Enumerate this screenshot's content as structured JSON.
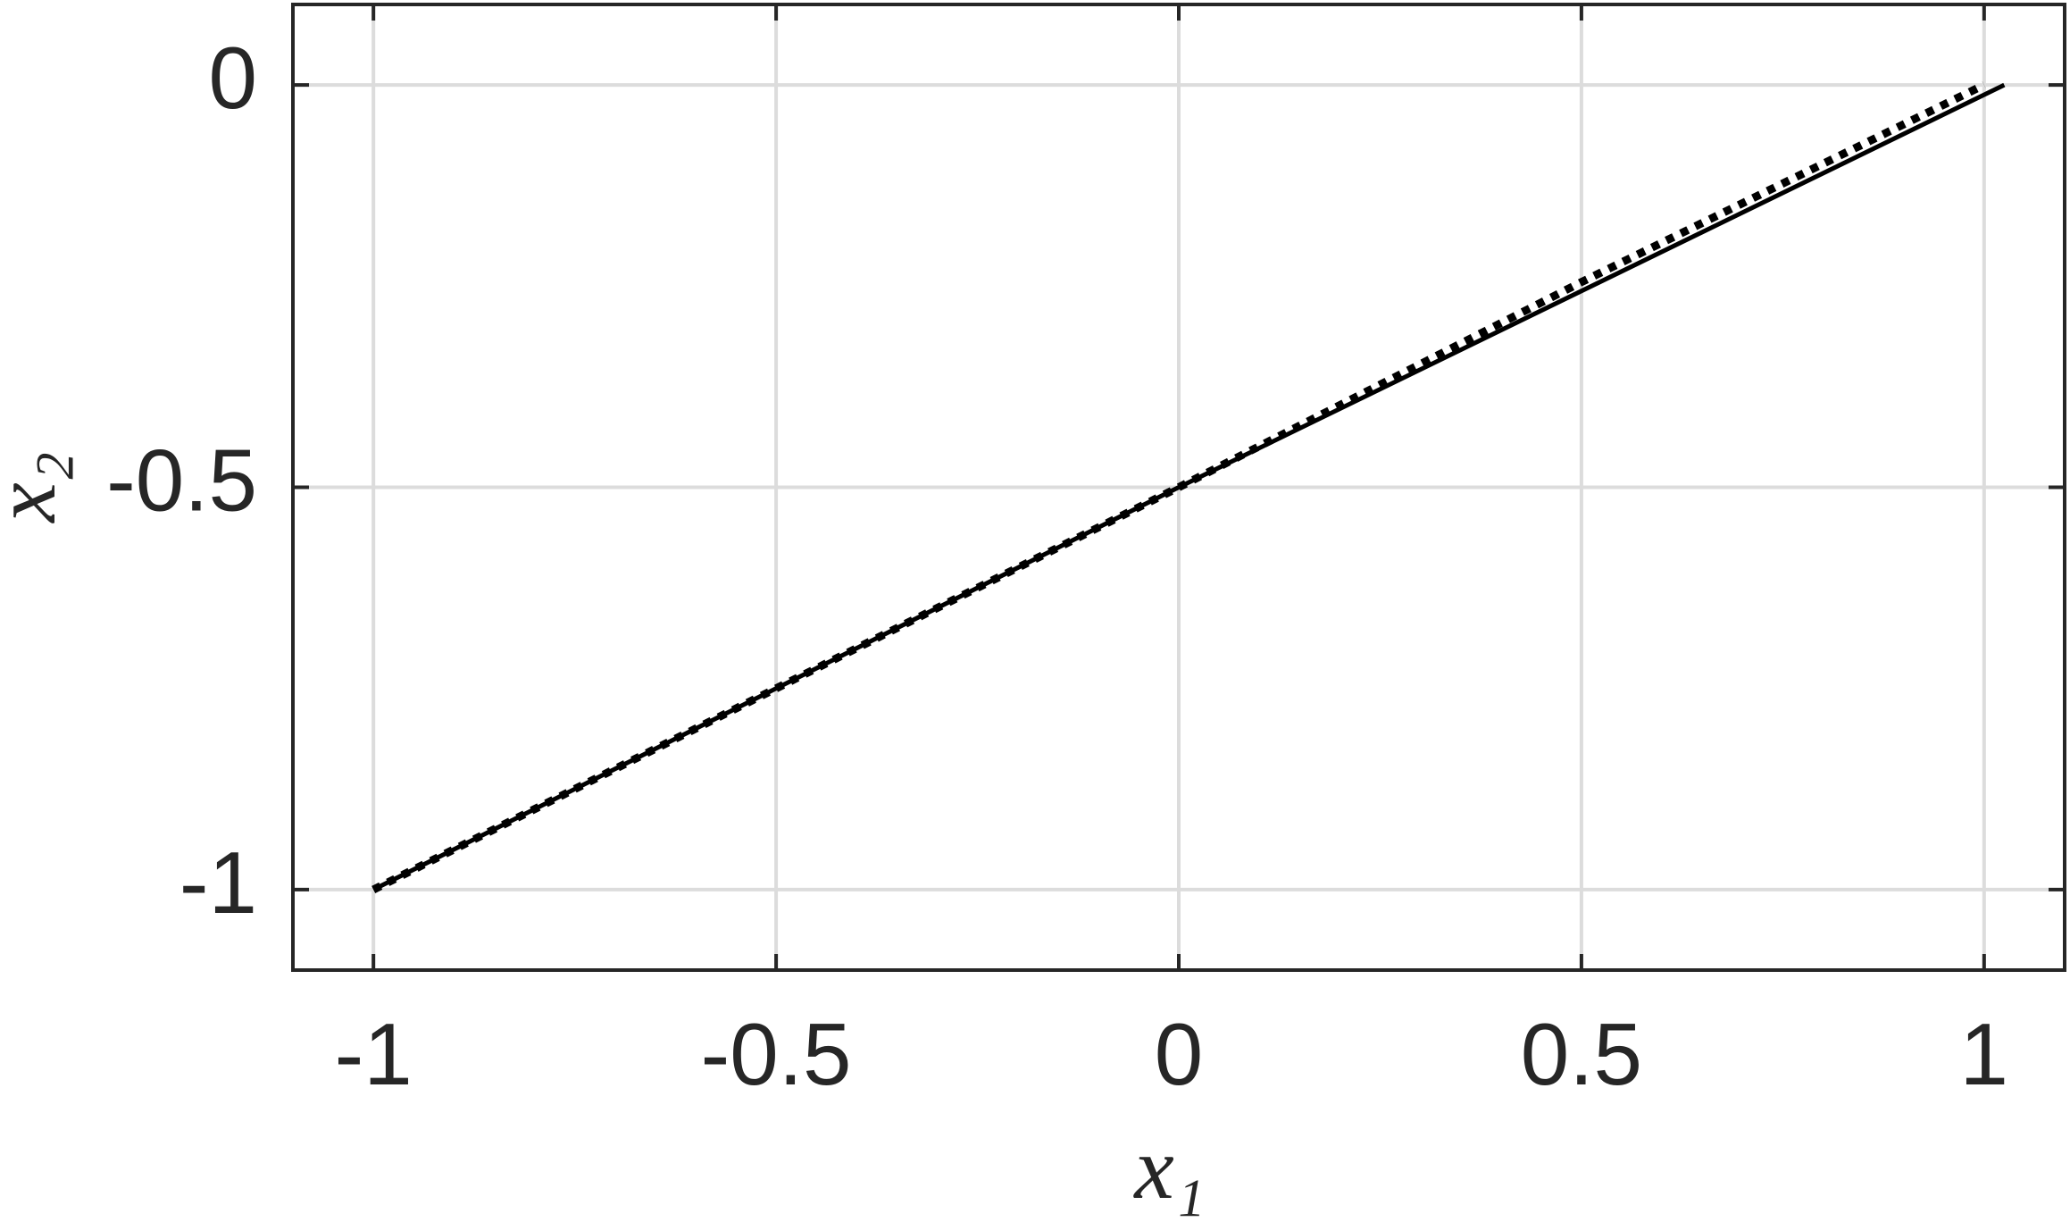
{
  "chart_data": {
    "type": "line",
    "xlabel": "x₁",
    "ylabel": "x₂",
    "xlim": [
      -1.1,
      1.1
    ],
    "ylim": [
      -1.1,
      0.1
    ],
    "xticks": [
      -1,
      -0.5,
      0,
      0.5,
      1
    ],
    "yticks": [
      -1,
      -0.5,
      0
    ],
    "grid": true,
    "series": [
      {
        "color": "#000000",
        "style": "solid",
        "x": [
          -1,
          0,
          1.025
        ],
        "values": [
          -1,
          -0.5,
          0
        ]
      },
      {
        "color": "#000000",
        "style": "dotted",
        "x": [
          -1,
          -0.5,
          0,
          0.5,
          1
        ],
        "values": [
          -1,
          -0.75,
          -0.5,
          -0.245,
          0
        ]
      }
    ]
  }
}
